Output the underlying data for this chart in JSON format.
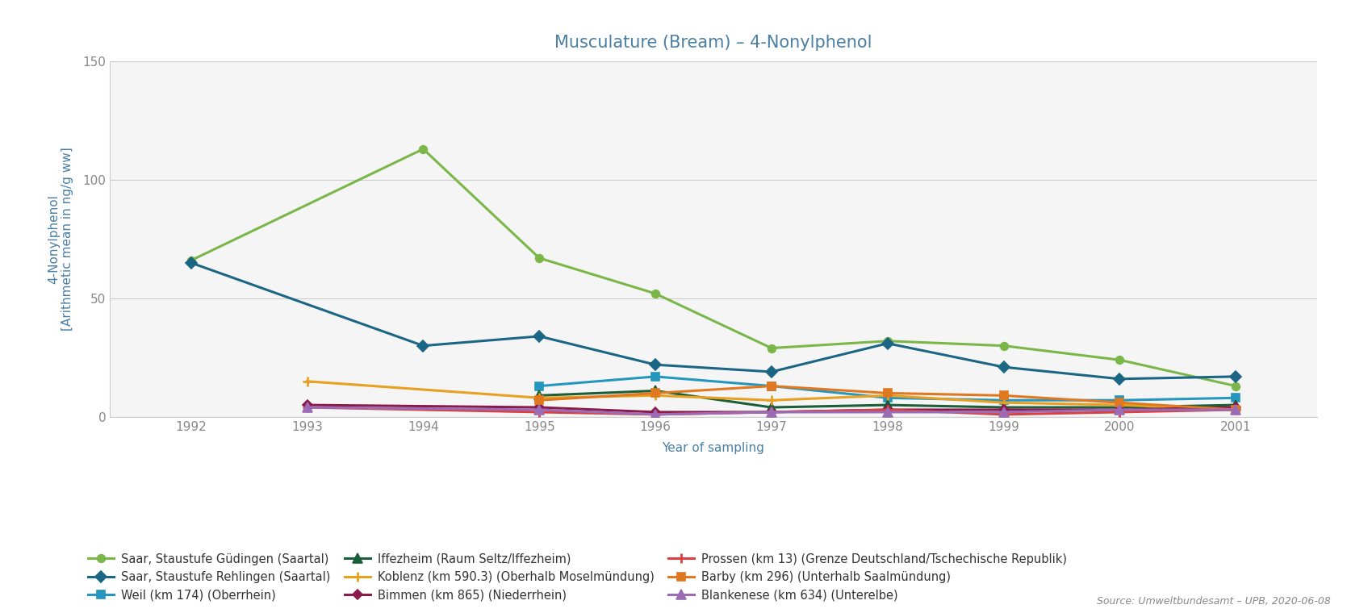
{
  "title": "Musculature (Bream) – 4-Nonylphenol",
  "xlabel": "Year of sampling",
  "ylabel_line1": "4-Nonylphenol",
  "ylabel_line2": "[Arithmetic mean in ng/g ww]",
  "ylim": [
    0,
    150
  ],
  "yticks": [
    0,
    50,
    100,
    150
  ],
  "source": "Source: Umweltbundesamt – UPB, 2020-06-08",
  "series": [
    {
      "label": "Saar, Staustufe Güdingen (Saartal)",
      "color": "#7ab648",
      "marker": "o",
      "markersize": 7,
      "linewidth": 2.2,
      "years": [
        1992,
        1994,
        1995,
        1996,
        1997,
        1998,
        1999,
        2000,
        2001
      ],
      "values": [
        66,
        113,
        67,
        52,
        29,
        32,
        30,
        24,
        13
      ]
    },
    {
      "label": "Saar, Staustufe Rehlingen (Saartal)",
      "color": "#1b6585",
      "marker": "D",
      "markersize": 7,
      "linewidth": 2.2,
      "years": [
        1992,
        1994,
        1995,
        1996,
        1997,
        1998,
        1999,
        2000,
        2001
      ],
      "values": [
        65,
        30,
        34,
        22,
        19,
        31,
        21,
        16,
        17
      ]
    },
    {
      "label": "Weil (km 174) (Oberrhein)",
      "color": "#2596be",
      "marker": "s",
      "markersize": 7,
      "linewidth": 2.2,
      "years": [
        1995,
        1996,
        1997,
        1998,
        1999,
        2000,
        2001
      ],
      "values": [
        13,
        17,
        13,
        8,
        7,
        7,
        8
      ]
    },
    {
      "label": "Iffezheim (Raum Seltz/Iffezheim)",
      "color": "#1a5e3a",
      "marker": "^",
      "markersize": 8,
      "linewidth": 2.2,
      "years": [
        1995,
        1996,
        1997,
        1998,
        1999,
        2000,
        2001
      ],
      "values": [
        9,
        11,
        4,
        5,
        4,
        4,
        5
      ]
    },
    {
      "label": "Koblenz (km 590.3) (Oberhalb Moselmündung)",
      "color": "#e8a020",
      "marker": "+",
      "markersize": 9,
      "linewidth": 2.2,
      "years": [
        1993,
        1995,
        1996,
        1997,
        1998,
        1999,
        2000,
        2001
      ],
      "values": [
        15,
        8,
        9,
        7,
        9,
        6,
        5,
        3
      ]
    },
    {
      "label": "Bimmen (km 865) (Niederrhein)",
      "color": "#8b1a4a",
      "marker": "D",
      "markersize": 6,
      "linewidth": 2.2,
      "years": [
        1993,
        1995,
        1996,
        1997,
        1998,
        1999,
        2000,
        2001
      ],
      "values": [
        5,
        4,
        2,
        2,
        3,
        3,
        3,
        4
      ]
    },
    {
      "label": "Prossen (km 13) (Grenze Deutschland/Tschechische Republik)",
      "color": "#d94040",
      "marker": "+",
      "markersize": 9,
      "linewidth": 2.2,
      "years": [
        1993,
        1995,
        1996,
        1997,
        1998,
        1999,
        2000,
        2001
      ],
      "values": [
        4,
        2,
        1,
        2,
        3,
        1,
        2,
        3
      ]
    },
    {
      "label": "Barby (km 296) (Unterhalb Saalmündung)",
      "color": "#e07820",
      "marker": "s",
      "markersize": 7,
      "linewidth": 2.2,
      "years": [
        1995,
        1996,
        1997,
        1998,
        1999,
        2000,
        2001
      ],
      "values": [
        7,
        10,
        13,
        10,
        9,
        6,
        3
      ]
    },
    {
      "label": "Blankenese (km 634) (Unterelbe)",
      "color": "#9b6bb5",
      "marker": "^",
      "markersize": 8,
      "linewidth": 2.2,
      "years": [
        1993,
        1995,
        1996,
        1997,
        1998,
        1999,
        2000,
        2001
      ],
      "values": [
        4,
        3,
        1,
        2,
        2,
        2,
        3,
        3
      ]
    }
  ],
  "title_color": "#4a7fa5",
  "axis_label_color": "#4a7fa5",
  "tick_color": "#888888",
  "grid_color": "#cccccc",
  "plot_bg_color": "#f5f5f5",
  "fig_bg_color": "#ffffff",
  "legend_fontsize": 10.5,
  "title_fontsize": 15,
  "axis_label_fontsize": 11,
  "legend_order": [
    0,
    1,
    2,
    3,
    4,
    5,
    6,
    7,
    8
  ]
}
